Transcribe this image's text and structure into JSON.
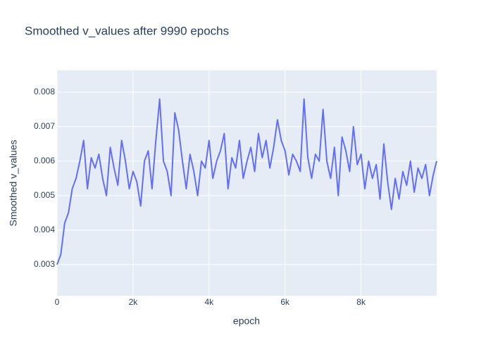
{
  "chart_data": {
    "type": "line",
    "title": "Smoothed v_values after 9990 epochs",
    "xlabel": "epoch",
    "ylabel": "Smoothed v_values",
    "color": "#636efa",
    "grid": true,
    "xlim": [
      0,
      9990
    ],
    "ylim": [
      0.0021,
      0.00863
    ],
    "xticks": [
      0,
      {
        "value": 2000,
        "label": "2k"
      },
      {
        "value": 4000,
        "label": "4k"
      },
      {
        "value": 6000,
        "label": "6k"
      },
      {
        "value": 8000,
        "label": "8k"
      }
    ],
    "yticks": [
      0.003,
      0.004,
      0.005,
      0.006,
      0.007,
      0.008
    ],
    "x": [
      0,
      100,
      200,
      300,
      400,
      500,
      600,
      700,
      800,
      900,
      1000,
      1100,
      1200,
      1300,
      1400,
      1500,
      1600,
      1700,
      1800,
      1900,
      2000,
      2100,
      2200,
      2300,
      2400,
      2500,
      2600,
      2700,
      2800,
      2900,
      3000,
      3100,
      3200,
      3300,
      3400,
      3500,
      3600,
      3700,
      3800,
      3900,
      4000,
      4100,
      4200,
      4300,
      4400,
      4500,
      4600,
      4700,
      4800,
      4900,
      5000,
      5100,
      5200,
      5300,
      5400,
      5500,
      5600,
      5700,
      5800,
      5900,
      6000,
      6100,
      6200,
      6300,
      6400,
      6500,
      6600,
      6700,
      6800,
      6900,
      7000,
      7100,
      7200,
      7300,
      7400,
      7500,
      7600,
      7700,
      7800,
      7900,
      8000,
      8100,
      8200,
      8300,
      8400,
      8500,
      8600,
      8700,
      8800,
      8900,
      9000,
      9100,
      9200,
      9300,
      9400,
      9500,
      9600,
      9700,
      9800,
      9900,
      9990
    ],
    "values": [
      0.003,
      0.0033,
      0.0042,
      0.0045,
      0.0052,
      0.0055,
      0.006,
      0.0066,
      0.0052,
      0.0061,
      0.0058,
      0.0062,
      0.0055,
      0.005,
      0.0064,
      0.0058,
      0.0053,
      0.0066,
      0.006,
      0.0052,
      0.0057,
      0.0054,
      0.0047,
      0.006,
      0.0063,
      0.0052,
      0.0066,
      0.0078,
      0.006,
      0.0057,
      0.005,
      0.0074,
      0.0069,
      0.006,
      0.0052,
      0.0062,
      0.0057,
      0.005,
      0.006,
      0.0058,
      0.0066,
      0.0055,
      0.006,
      0.0063,
      0.0068,
      0.0052,
      0.0061,
      0.0058,
      0.0066,
      0.0055,
      0.006,
      0.0064,
      0.0057,
      0.0068,
      0.0061,
      0.0066,
      0.0058,
      0.0064,
      0.0072,
      0.0066,
      0.0063,
      0.0056,
      0.0062,
      0.006,
      0.0057,
      0.0078,
      0.0061,
      0.0055,
      0.0062,
      0.006,
      0.0075,
      0.006,
      0.0055,
      0.0064,
      0.005,
      0.0067,
      0.0063,
      0.0057,
      0.007,
      0.0059,
      0.0062,
      0.0052,
      0.006,
      0.0055,
      0.0059,
      0.0049,
      0.0065,
      0.0054,
      0.0046,
      0.0055,
      0.0049,
      0.0057,
      0.0053,
      0.006,
      0.0051,
      0.0058,
      0.0055,
      0.0059,
      0.005,
      0.0056,
      0.006
    ]
  }
}
